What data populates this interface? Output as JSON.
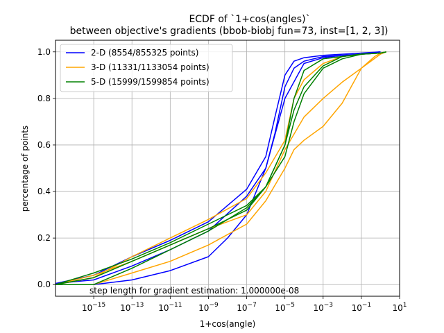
{
  "chart_data": {
    "type": "line",
    "title": "ECDF of `1+cos(angles)`",
    "subtitle": "between objective's gradients (bbob-biobj fun=73, inst=[1, 2, 3])",
    "xlabel": "1+cos(angle)",
    "ylabel": "percentage of points",
    "x_scale": "log",
    "xlim": [
      1e-17,
      10
    ],
    "ylim": [
      -0.05,
      1.05
    ],
    "x_ticks": [
      1e-15,
      1e-13,
      1e-11,
      1e-09,
      1e-07,
      1e-05,
      0.001,
      0.1,
      10
    ],
    "x_tick_labels": [
      {
        "base": "10",
        "exp": "−15"
      },
      {
        "base": "10",
        "exp": "−13"
      },
      {
        "base": "10",
        "exp": "−11"
      },
      {
        "base": "10",
        "exp": "−9"
      },
      {
        "base": "10",
        "exp": "−7"
      },
      {
        "base": "10",
        "exp": "−5"
      },
      {
        "base": "10",
        "exp": "−3"
      },
      {
        "base": "10",
        "exp": "−1"
      },
      {
        "base": "10",
        "exp": "1"
      }
    ],
    "y_ticks": [
      0.0,
      0.2,
      0.4,
      0.6,
      0.8,
      1.0
    ],
    "y_tick_labels": [
      "0.0",
      "0.2",
      "0.4",
      "0.6",
      "0.8",
      "1.0"
    ],
    "grid": true,
    "legend_placement": "top-left",
    "annotation": "step length for gradient estimation: 1.000000e-08",
    "series": [
      {
        "name": "2-D (8554/855325 points)",
        "color": "#0000ff",
        "x": [
          1e-17,
          1e-15,
          1e-13,
          1e-11,
          1e-09,
          1e-07,
          1e-06,
          3e-06,
          1e-05,
          3e-05,
          0.0001,
          0.001,
          0.01,
          0.1,
          1
        ],
        "y": [
          0.005,
          0.02,
          0.08,
          0.15,
          0.23,
          0.38,
          0.5,
          0.65,
          0.85,
          0.93,
          0.96,
          0.98,
          0.985,
          0.99,
          1.0
        ]
      },
      {
        "name": "2-D (8554/855325 points)",
        "color": "#0000ff",
        "x": [
          1e-17,
          1e-15,
          1e-13,
          1e-11,
          1e-09,
          1e-07,
          1e-06,
          3e-06,
          1e-05,
          3e-05,
          0.0001,
          0.001,
          0.01,
          0.1,
          1
        ],
        "y": [
          0.005,
          0.04,
          0.12,
          0.19,
          0.27,
          0.41,
          0.55,
          0.72,
          0.9,
          0.96,
          0.975,
          0.985,
          0.99,
          0.995,
          1.0
        ]
      },
      {
        "name": "2-D (8554/855325 points)",
        "color": "#0000ff",
        "x": [
          1e-17,
          1e-15,
          1e-14,
          1e-13,
          1e-11,
          1e-09,
          1e-08,
          1e-07,
          1e-06,
          1e-05,
          0.0001,
          0.001,
          0.01,
          0.1,
          1
        ],
        "y": [
          0.0,
          0.0,
          0.01,
          0.02,
          0.06,
          0.12,
          0.2,
          0.3,
          0.5,
          0.8,
          0.95,
          0.975,
          0.985,
          0.99,
          1.0
        ]
      },
      {
        "name": "3-D (11331/1133054 points)",
        "color": "#ffa500",
        "x": [
          1e-17,
          1e-15,
          1e-13,
          1e-11,
          1e-09,
          1e-07,
          1e-06,
          1e-05,
          3e-05,
          0.0001,
          0.001,
          0.01,
          0.1,
          1,
          2
        ],
        "y": [
          0.0,
          0.03,
          0.12,
          0.2,
          0.28,
          0.37,
          0.48,
          0.62,
          0.8,
          0.88,
          0.95,
          0.98,
          0.99,
          0.995,
          1.0
        ]
      },
      {
        "name": "3-D (11331/1133054 points)",
        "color": "#ffa500",
        "x": [
          1e-17,
          1e-15,
          1e-13,
          1e-11,
          1e-09,
          1e-07,
          1e-06,
          1e-05,
          3e-05,
          0.0001,
          0.001,
          0.01,
          0.1,
          1,
          2
        ],
        "y": [
          0.0,
          0.0,
          0.05,
          0.1,
          0.17,
          0.26,
          0.36,
          0.5,
          0.58,
          0.62,
          0.68,
          0.78,
          0.93,
          0.99,
          1.0
        ]
      },
      {
        "name": "3-D (11331/1133054 points)",
        "color": "#ffa500",
        "x": [
          1e-17,
          1e-15,
          1e-13,
          1e-11,
          1e-09,
          1e-07,
          1e-06,
          1e-05,
          0.0001,
          0.001,
          0.01,
          0.1,
          0.5,
          1,
          2
        ],
        "y": [
          0.0,
          0.04,
          0.1,
          0.17,
          0.24,
          0.3,
          0.4,
          0.58,
          0.72,
          0.8,
          0.87,
          0.93,
          0.98,
          0.995,
          1.0
        ]
      },
      {
        "name": "5-D (15999/1599854 points)",
        "color": "#008000",
        "x": [
          1e-17,
          1e-15,
          1e-13,
          1e-11,
          1e-09,
          1e-07,
          1e-06,
          1e-05,
          3e-05,
          0.0001,
          0.001,
          0.01,
          0.1,
          1,
          2
        ],
        "y": [
          0.0,
          0.03,
          0.1,
          0.17,
          0.24,
          0.32,
          0.42,
          0.6,
          0.8,
          0.92,
          0.97,
          0.98,
          0.99,
          0.995,
          1.0
        ]
      },
      {
        "name": "5-D (15999/1599854 points)",
        "color": "#008000",
        "x": [
          1e-17,
          1e-15,
          1e-13,
          1e-11,
          1e-09,
          1e-07,
          1e-06,
          1e-05,
          3e-05,
          0.0001,
          0.001,
          0.01,
          0.1,
          1,
          2
        ],
        "y": [
          0.0,
          0.05,
          0.11,
          0.18,
          0.26,
          0.34,
          0.42,
          0.55,
          0.7,
          0.82,
          0.93,
          0.97,
          0.99,
          0.995,
          1.0
        ]
      },
      {
        "name": "5-D (15999/1599854 points)",
        "color": "#008000",
        "x": [
          1e-17,
          1e-15,
          1e-13,
          1e-11,
          1e-09,
          1e-07,
          1e-06,
          1e-05,
          3e-05,
          0.0001,
          0.001,
          0.01,
          0.1,
          1,
          2
        ],
        "y": [
          0.0,
          0.0,
          0.07,
          0.15,
          0.23,
          0.33,
          0.42,
          0.6,
          0.75,
          0.85,
          0.94,
          0.98,
          0.99,
          0.995,
          1.0
        ]
      }
    ],
    "legend": [
      {
        "label": "2-D (8554/855325 points)",
        "color": "#0000ff"
      },
      {
        "label": "3-D (11331/1133054 points)",
        "color": "#ffa500"
      },
      {
        "label": "5-D (15999/1599854 points)",
        "color": "#008000"
      }
    ]
  }
}
